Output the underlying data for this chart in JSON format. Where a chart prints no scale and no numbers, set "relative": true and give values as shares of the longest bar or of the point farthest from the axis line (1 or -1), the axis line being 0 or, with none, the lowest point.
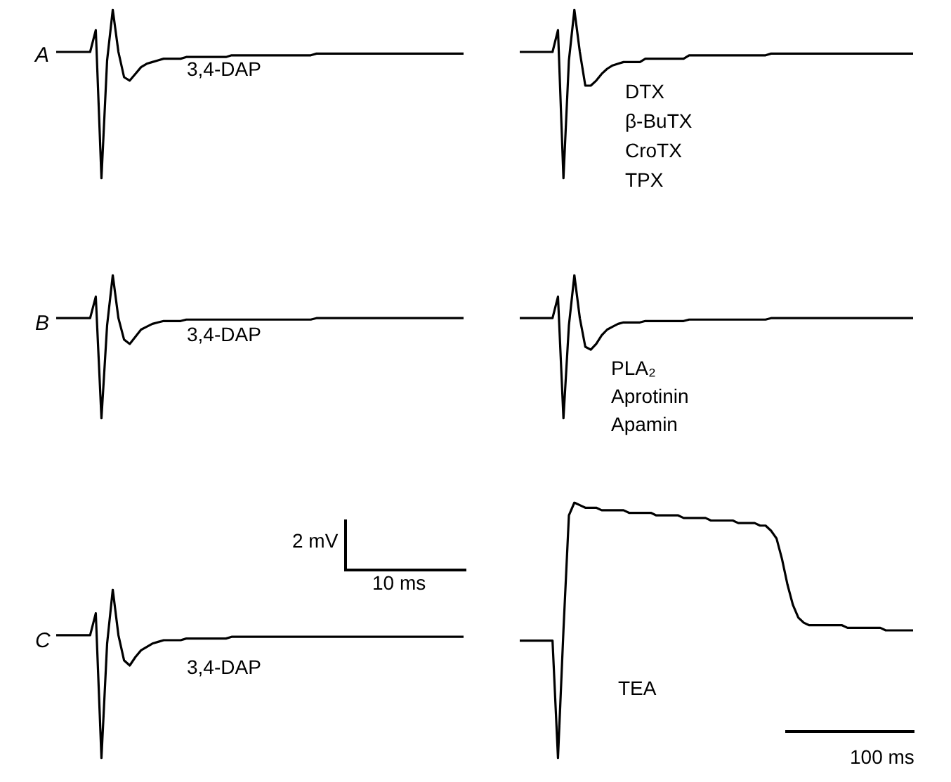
{
  "chart_data": [
    {
      "type": "line",
      "relative": true,
      "title": "A",
      "color": "#000000",
      "annotations": [
        "3,4-DAP"
      ],
      "categories": [
        null,
        null,
        null,
        null,
        null,
        null,
        null,
        null,
        null,
        null,
        null,
        null,
        null,
        null,
        null,
        null,
        null,
        null,
        null,
        null,
        null,
        null,
        null,
        null,
        null,
        null,
        null,
        null,
        null,
        null,
        null,
        null,
        null,
        null,
        null,
        null,
        null,
        null,
        null,
        null,
        null,
        null,
        null,
        null,
        null,
        null,
        null,
        null,
        null,
        null,
        null,
        null,
        null,
        null,
        null,
        null,
        null,
        null,
        null,
        null,
        null,
        null,
        null,
        null,
        null,
        null,
        null,
        null,
        null,
        null,
        null,
        null,
        null
      ],
      "values": [
        0.75,
        0.75,
        0.75,
        0.75,
        0.75,
        0.75,
        0.75,
        0.88,
        0.0,
        0.7,
        1.0,
        0.75,
        0.6,
        0.58,
        0.62,
        0.66,
        0.68,
        0.69,
        0.7,
        0.71,
        0.71,
        0.71,
        0.71,
        0.72,
        0.72,
        0.72,
        0.72,
        0.72,
        0.72,
        0.72,
        0.72,
        0.73,
        0.73,
        0.73,
        0.73,
        0.73,
        0.73,
        0.73,
        0.73,
        0.73,
        0.73,
        0.73,
        0.73,
        0.73,
        0.73,
        0.73,
        0.74,
        0.74,
        0.74,
        0.74,
        0.74,
        0.74,
        0.74,
        0.74,
        0.74,
        0.74,
        0.74,
        0.74,
        0.74,
        0.74,
        0.74,
        0.74,
        0.74,
        0.74,
        0.74,
        0.74,
        0.74,
        0.74,
        0.74,
        0.74,
        0.74,
        0.74,
        0.74
      ]
    },
    {
      "type": "line",
      "relative": true,
      "color": "#000000",
      "annotations": [
        "DTX",
        "β-BuTX",
        "CroTX",
        "TPX"
      ],
      "categories": [
        null,
        null,
        null,
        null,
        null,
        null,
        null,
        null,
        null,
        null,
        null,
        null,
        null,
        null,
        null,
        null,
        null,
        null,
        null,
        null,
        null,
        null,
        null,
        null,
        null,
        null,
        null,
        null,
        null,
        null,
        null,
        null,
        null,
        null,
        null,
        null,
        null,
        null,
        null,
        null,
        null,
        null,
        null,
        null,
        null,
        null,
        null,
        null,
        null,
        null,
        null,
        null,
        null,
        null,
        null,
        null,
        null,
        null,
        null,
        null,
        null,
        null,
        null,
        null,
        null,
        null,
        null,
        null,
        null,
        null,
        null,
        null,
        null
      ],
      "values": [
        0.75,
        0.75,
        0.75,
        0.75,
        0.75,
        0.75,
        0.75,
        0.88,
        0.0,
        0.7,
        1.0,
        0.75,
        0.55,
        0.55,
        0.58,
        0.62,
        0.65,
        0.67,
        0.68,
        0.69,
        0.69,
        0.69,
        0.69,
        0.71,
        0.71,
        0.71,
        0.71,
        0.71,
        0.71,
        0.71,
        0.71,
        0.73,
        0.73,
        0.73,
        0.73,
        0.73,
        0.73,
        0.73,
        0.73,
        0.73,
        0.73,
        0.73,
        0.73,
        0.73,
        0.73,
        0.73,
        0.74,
        0.74,
        0.74,
        0.74,
        0.74,
        0.74,
        0.74,
        0.74,
        0.74,
        0.74,
        0.74,
        0.74,
        0.74,
        0.74,
        0.74,
        0.74,
        0.74,
        0.74,
        0.74,
        0.74,
        0.74,
        0.74,
        0.74,
        0.74,
        0.74,
        0.74,
        0.74
      ]
    },
    {
      "type": "line",
      "relative": true,
      "title": "B",
      "color": "#000000",
      "annotations": [
        "3,4-DAP"
      ],
      "categories": [
        null,
        null,
        null,
        null,
        null,
        null,
        null,
        null,
        null,
        null,
        null,
        null,
        null,
        null,
        null,
        null,
        null,
        null,
        null,
        null,
        null,
        null,
        null,
        null,
        null,
        null,
        null,
        null,
        null,
        null,
        null,
        null,
        null,
        null,
        null,
        null,
        null,
        null,
        null,
        null,
        null,
        null,
        null,
        null,
        null,
        null,
        null,
        null,
        null,
        null,
        null,
        null,
        null,
        null,
        null,
        null,
        null,
        null,
        null,
        null,
        null,
        null,
        null,
        null,
        null,
        null,
        null,
        null,
        null,
        null,
        null,
        null,
        null
      ],
      "values": [
        0.7,
        0.7,
        0.7,
        0.7,
        0.7,
        0.7,
        0.7,
        0.85,
        0.0,
        0.65,
        1.0,
        0.7,
        0.55,
        0.52,
        0.57,
        0.62,
        0.64,
        0.66,
        0.67,
        0.68,
        0.68,
        0.68,
        0.68,
        0.69,
        0.69,
        0.69,
        0.69,
        0.69,
        0.69,
        0.69,
        0.69,
        0.69,
        0.69,
        0.69,
        0.69,
        0.69,
        0.69,
        0.69,
        0.69,
        0.69,
        0.69,
        0.69,
        0.69,
        0.69,
        0.69,
        0.69,
        0.7,
        0.7,
        0.7,
        0.7,
        0.7,
        0.7,
        0.7,
        0.7,
        0.7,
        0.7,
        0.7,
        0.7,
        0.7,
        0.7,
        0.7,
        0.7,
        0.7,
        0.7,
        0.7,
        0.7,
        0.7,
        0.7,
        0.7,
        0.7,
        0.7,
        0.7,
        0.7
      ]
    },
    {
      "type": "line",
      "relative": true,
      "color": "#000000",
      "annotations": [
        "PLA₂",
        "Aprotinin",
        "Apamin"
      ],
      "categories": [
        null,
        null,
        null,
        null,
        null,
        null,
        null,
        null,
        null,
        null,
        null,
        null,
        null,
        null,
        null,
        null,
        null,
        null,
        null,
        null,
        null,
        null,
        null,
        null,
        null,
        null,
        null,
        null,
        null,
        null,
        null,
        null,
        null,
        null,
        null,
        null,
        null,
        null,
        null,
        null,
        null,
        null,
        null,
        null,
        null,
        null,
        null,
        null,
        null,
        null,
        null,
        null,
        null,
        null,
        null,
        null,
        null,
        null,
        null,
        null,
        null,
        null,
        null,
        null,
        null,
        null,
        null,
        null,
        null,
        null,
        null,
        null,
        null
      ],
      "values": [
        0.7,
        0.7,
        0.7,
        0.7,
        0.7,
        0.7,
        0.7,
        0.85,
        0.0,
        0.65,
        1.0,
        0.7,
        0.5,
        0.48,
        0.52,
        0.58,
        0.62,
        0.64,
        0.66,
        0.67,
        0.67,
        0.67,
        0.67,
        0.68,
        0.68,
        0.68,
        0.68,
        0.68,
        0.68,
        0.68,
        0.68,
        0.69,
        0.69,
        0.69,
        0.69,
        0.69,
        0.69,
        0.69,
        0.69,
        0.69,
        0.69,
        0.69,
        0.69,
        0.69,
        0.69,
        0.69,
        0.7,
        0.7,
        0.7,
        0.7,
        0.7,
        0.7,
        0.7,
        0.7,
        0.7,
        0.7,
        0.7,
        0.7,
        0.7,
        0.7,
        0.7,
        0.7,
        0.7,
        0.7,
        0.7,
        0.7,
        0.7,
        0.7,
        0.7,
        0.7,
        0.7,
        0.7,
        0.7
      ]
    },
    {
      "type": "line",
      "relative": true,
      "title": "C",
      "color": "#000000",
      "annotations": [
        "3,4-DAP",
        "2 mV",
        "10 ms"
      ],
      "categories": [
        null,
        null,
        null,
        null,
        null,
        null,
        null,
        null,
        null,
        null,
        null,
        null,
        null,
        null,
        null,
        null,
        null,
        null,
        null,
        null,
        null,
        null,
        null,
        null,
        null,
        null,
        null,
        null,
        null,
        null,
        null,
        null,
        null,
        null,
        null,
        null,
        null,
        null,
        null,
        null,
        null,
        null,
        null,
        null,
        null,
        null,
        null,
        null,
        null,
        null,
        null,
        null,
        null,
        null,
        null,
        null,
        null,
        null,
        null,
        null,
        null,
        null,
        null,
        null,
        null,
        null,
        null,
        null,
        null,
        null,
        null,
        null,
        null
      ],
      "values": [
        0.73,
        0.73,
        0.73,
        0.73,
        0.73,
        0.73,
        0.73,
        0.86,
        0.0,
        0.68,
        1.0,
        0.73,
        0.58,
        0.55,
        0.6,
        0.64,
        0.66,
        0.68,
        0.69,
        0.7,
        0.7,
        0.7,
        0.7,
        0.71,
        0.71,
        0.71,
        0.71,
        0.71,
        0.71,
        0.71,
        0.71,
        0.72,
        0.72,
        0.72,
        0.72,
        0.72,
        0.72,
        0.72,
        0.72,
        0.72,
        0.72,
        0.72,
        0.72,
        0.72,
        0.72,
        0.72,
        0.72,
        0.72,
        0.72,
        0.72,
        0.72,
        0.72,
        0.72,
        0.72,
        0.72,
        0.72,
        0.72,
        0.72,
        0.72,
        0.72,
        0.72,
        0.72,
        0.72,
        0.72,
        0.72,
        0.72,
        0.72,
        0.72,
        0.72,
        0.72,
        0.72,
        0.72,
        0.72
      ]
    },
    {
      "type": "line",
      "relative": true,
      "color": "#000000",
      "annotations": [
        "TEA",
        "100 ms"
      ],
      "categories": [
        null,
        null,
        null,
        null,
        null,
        null,
        null,
        null,
        null,
        null,
        null,
        null,
        null,
        null,
        null,
        null,
        null,
        null,
        null,
        null,
        null,
        null,
        null,
        null,
        null,
        null,
        null,
        null,
        null,
        null,
        null,
        null,
        null,
        null,
        null,
        null,
        null,
        null,
        null,
        null,
        null,
        null,
        null,
        null,
        null,
        null,
        null,
        null,
        null,
        null,
        null,
        null,
        null,
        null,
        null,
        null,
        null,
        null,
        null,
        null,
        null,
        null,
        null,
        null,
        null,
        null,
        null,
        null,
        null,
        null,
        null,
        null,
        null
      ],
      "values": [
        0.46,
        0.46,
        0.46,
        0.46,
        0.46,
        0.46,
        0.46,
        0.0,
        0.5,
        0.95,
        1.0,
        0.99,
        0.98,
        0.98,
        0.98,
        0.97,
        0.97,
        0.97,
        0.97,
        0.97,
        0.96,
        0.96,
        0.96,
        0.96,
        0.96,
        0.95,
        0.95,
        0.95,
        0.95,
        0.95,
        0.94,
        0.94,
        0.94,
        0.94,
        0.94,
        0.93,
        0.93,
        0.93,
        0.93,
        0.93,
        0.92,
        0.92,
        0.92,
        0.92,
        0.91,
        0.91,
        0.89,
        0.86,
        0.78,
        0.68,
        0.6,
        0.55,
        0.53,
        0.52,
        0.52,
        0.52,
        0.52,
        0.52,
        0.52,
        0.52,
        0.51,
        0.51,
        0.51,
        0.51,
        0.51,
        0.51,
        0.51,
        0.5,
        0.5,
        0.5,
        0.5,
        0.5,
        0.5
      ]
    }
  ]
}
